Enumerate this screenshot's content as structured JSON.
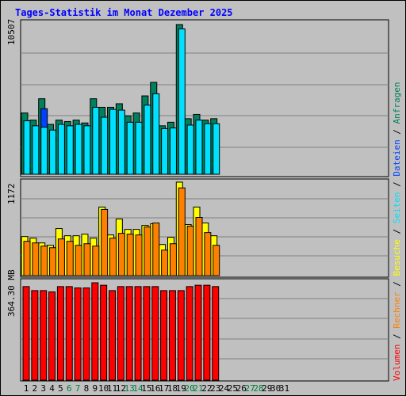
{
  "chart_data": {
    "type": "bar",
    "title": "Tages-Statistik im Monat Dezember 2025",
    "days": [
      "1",
      "2",
      "3",
      "4",
      "5",
      "6",
      "7",
      "8",
      "9",
      "10",
      "11",
      "12",
      "13",
      "14",
      "15",
      "16",
      "17",
      "18",
      "19",
      "20",
      "21",
      "22",
      "23",
      "24",
      "25",
      "26",
      "27",
      "28",
      "29",
      "30",
      "31"
    ],
    "weekend_days": [
      "6",
      "7",
      "13",
      "14",
      "20",
      "21",
      "27",
      "28"
    ],
    "panels": [
      {
        "id": "requests",
        "ymax_label": "10507",
        "ymax": 10507,
        "series": [
          {
            "name": "Anfragen",
            "color": "#00805c",
            "values": [
              4300,
              3800,
              5300,
              3500,
              3800,
              3700,
              3800,
              3600,
              5300,
              4700,
              4700,
              4950,
              4100,
              4300,
              5500,
              6450,
              3400,
              3650,
              10507,
              3900,
              4200,
              3800,
              3900
            ]
          },
          {
            "name": "Dateien",
            "color": "#0040ff",
            "values": [
              null,
              null,
              4600,
              null,
              null,
              null,
              null,
              null,
              null,
              null,
              null,
              null,
              null,
              null,
              null,
              null,
              null,
              null,
              null,
              null,
              null,
              null,
              null
            ]
          },
          {
            "name": "Seiten",
            "color": "#00e0ff",
            "values": [
              3750,
              3400,
              3300,
              3100,
              3500,
              3400,
              3500,
              3400,
              4700,
              4000,
              4550,
              4500,
              3650,
              3650,
              4850,
              5650,
              3200,
              3250,
              10200,
              3450,
              3800,
              3550,
              3550
            ]
          }
        ]
      },
      {
        "id": "visits",
        "ymax_label": "1172",
        "ymax": 1172,
        "series": [
          {
            "name": "Besuche",
            "color": "#ffff00",
            "values": [
              490,
              470,
              410,
              380,
              590,
              500,
              500,
              520,
              470,
              860,
              510,
              710,
              580,
              580,
              630,
              650,
              390,
              480,
              1172,
              640,
              860,
              660,
              500
            ]
          },
          {
            "name": "Rechner",
            "color": "#ff8000",
            "values": [
              430,
              410,
              370,
              350,
              460,
              430,
              380,
              400,
              370,
              830,
              470,
              530,
              520,
              510,
              610,
              660,
              320,
              400,
              1100,
              620,
              730,
              540,
              380
            ]
          }
        ]
      },
      {
        "id": "volume",
        "ymax_label": "364.30 MB",
        "ymax": 364.3,
        "series": [
          {
            "name": "Volumen",
            "color": "#ff0000",
            "values": [
              350,
              335,
              335,
              330,
              350,
              350,
              345,
              345,
              364.3,
              355,
              335,
              350,
              350,
              350,
              350,
              350,
              335,
              335,
              335,
              350,
              355,
              355,
              350
            ]
          }
        ]
      }
    ],
    "legend": [
      {
        "name": "Volumen",
        "color": "#ff0000"
      },
      {
        "name": "Rechner",
        "color": "#ff8000"
      },
      {
        "name": "Besuche",
        "color": "#ffff00"
      },
      {
        "name": "Seiten",
        "color": "#00e0ff"
      },
      {
        "name": "Dateien",
        "color": "#0040ff"
      },
      {
        "name": "Anfragen",
        "color": "#00805c"
      }
    ],
    "legend_separator": " / "
  }
}
